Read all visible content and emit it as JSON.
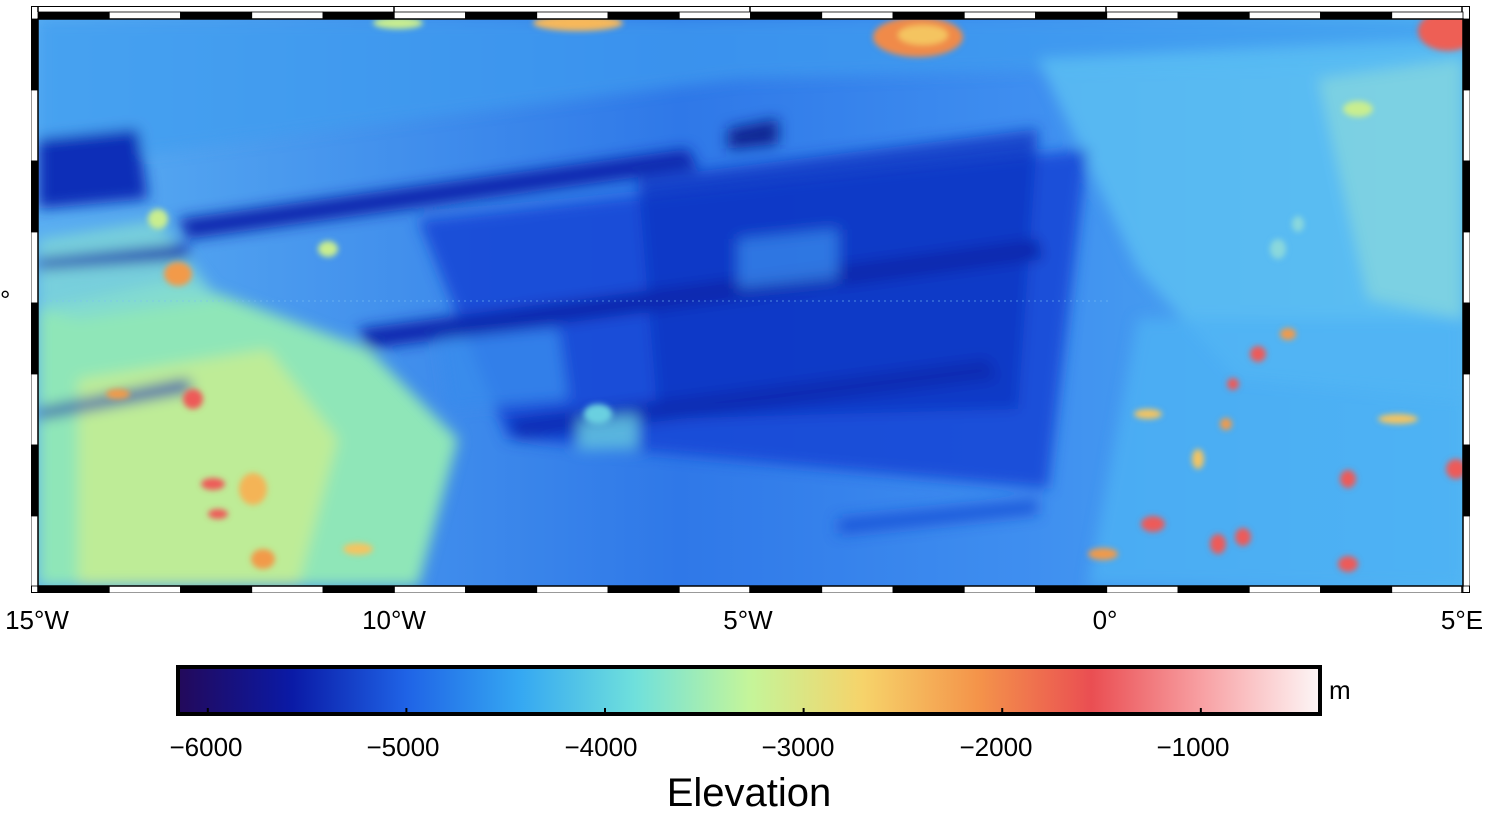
{
  "map": {
    "x_axis_labels": [
      "15°W",
      "10°W",
      "5°W",
      "0°",
      "5°E"
    ],
    "y_axis_labels": [
      "°"
    ]
  },
  "colorbar": {
    "ticks": [
      "−6000",
      "−5000",
      "−4000",
      "−3000",
      "−2000",
      "−1000"
    ],
    "tick_values": [
      -6000,
      -5000,
      -4000,
      -3000,
      -2000,
      -1000
    ],
    "range": [
      -6150,
      -400
    ],
    "unit": "m",
    "title": "Elevation",
    "colormap": [
      "#23095a",
      "#0a1aa6",
      "#1f63e6",
      "#35a8f2",
      "#6fe0dc",
      "#c4f59a",
      "#f6d36a",
      "#f4944a",
      "#ea4e52",
      "#f8a3a6",
      "#fdf6f6"
    ]
  },
  "chart_data": {
    "type": "heatmap",
    "title": "",
    "x_range": [
      -15,
      5
    ],
    "x_ticks": [
      "15°W",
      "10°W",
      "5°W",
      "0°",
      "5°E"
    ],
    "value_label": "Elevation",
    "value_unit": "m",
    "value_range": [
      -6150,
      -400
    ]
  }
}
